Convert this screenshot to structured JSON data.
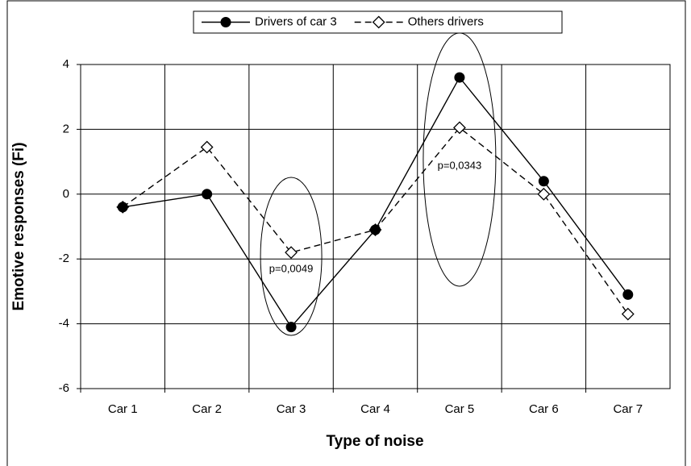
{
  "chart_data": {
    "type": "line",
    "xlabel": "Type of noise",
    "ylabel": "Emotive responses (Fi)",
    "categories": [
      "Car 1",
      "Car 2",
      "Car 3",
      "Car 4",
      "Car 5",
      "Car 6",
      "Car 7"
    ],
    "series": [
      {
        "name": "Drivers of car 3",
        "color": "#000000",
        "marker": "circle",
        "linestyle": "solid",
        "values": [
          -0.4,
          0,
          -4.1,
          -1.1,
          3.6,
          0.4,
          -3.1
        ]
      },
      {
        "name": "Others drivers",
        "color": "#000000",
        "marker": "diamond",
        "linestyle": "dashed",
        "values": [
          -0.4,
          1.45,
          -1.8,
          -1.1,
          2.05,
          0,
          -3.7
        ]
      }
    ],
    "annotations": [
      "p=0,0049",
      "p=0,0343"
    ],
    "ylim": [
      -6,
      4
    ],
    "yticks": [
      -6,
      -4,
      -2,
      0,
      2,
      4
    ],
    "grid": true,
    "legend": "top"
  }
}
